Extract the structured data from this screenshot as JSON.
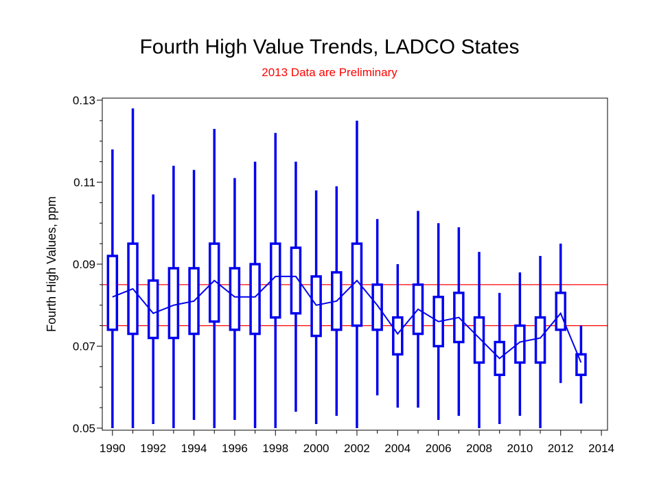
{
  "chart_data": {
    "type": "box",
    "title": "Fourth High Value Trends, LADCO States",
    "subtitle": "2013 Data are Preliminary",
    "xlabel": "",
    "ylabel": "Fourth High Values, ppm",
    "xlim": [
      1989.5,
      2014.3
    ],
    "ylim": [
      0.0495,
      0.1305
    ],
    "x_ticks": [
      "1990",
      "1992",
      "1994",
      "1996",
      "1998",
      "2000",
      "2002",
      "2004",
      "2006",
      "2008",
      "2010",
      "2012",
      "2014"
    ],
    "y_ticks": [
      "0.05",
      "0.07",
      "0.09",
      "0.11",
      "0.13"
    ],
    "grid": false,
    "legend": "none",
    "colors": {
      "box": "#0000ee",
      "reference": "#ff0000",
      "axis": "#000000"
    },
    "reference_lines": [
      0.085,
      0.075
    ],
    "boxes": [
      {
        "year": 1990,
        "min": 0.05,
        "q1": 0.074,
        "median": 0.082,
        "q3": 0.092,
        "max": 0.118
      },
      {
        "year": 1991,
        "min": 0.05,
        "q1": 0.073,
        "median": 0.084,
        "q3": 0.095,
        "max": 0.128
      },
      {
        "year": 1992,
        "min": 0.051,
        "q1": 0.072,
        "median": 0.078,
        "q3": 0.086,
        "max": 0.107
      },
      {
        "year": 1993,
        "min": 0.05,
        "q1": 0.072,
        "median": 0.08,
        "q3": 0.089,
        "max": 0.114
      },
      {
        "year": 1994,
        "min": 0.052,
        "q1": 0.073,
        "median": 0.081,
        "q3": 0.089,
        "max": 0.113
      },
      {
        "year": 1995,
        "min": 0.05,
        "q1": 0.076,
        "median": 0.086,
        "q3": 0.095,
        "max": 0.123
      },
      {
        "year": 1996,
        "min": 0.052,
        "q1": 0.074,
        "median": 0.082,
        "q3": 0.089,
        "max": 0.111
      },
      {
        "year": 1997,
        "min": 0.05,
        "q1": 0.073,
        "median": 0.082,
        "q3": 0.09,
        "max": 0.115
      },
      {
        "year": 1998,
        "min": 0.05,
        "q1": 0.077,
        "median": 0.087,
        "q3": 0.095,
        "max": 0.122
      },
      {
        "year": 1999,
        "min": 0.054,
        "q1": 0.078,
        "median": 0.087,
        "q3": 0.094,
        "max": 0.115
      },
      {
        "year": 2000,
        "min": 0.051,
        "q1": 0.0725,
        "median": 0.08,
        "q3": 0.087,
        "max": 0.108
      },
      {
        "year": 2001,
        "min": 0.053,
        "q1": 0.074,
        "median": 0.081,
        "q3": 0.088,
        "max": 0.109
      },
      {
        "year": 2002,
        "min": 0.05,
        "q1": 0.075,
        "median": 0.086,
        "q3": 0.095,
        "max": 0.125
      },
      {
        "year": 2003,
        "min": 0.058,
        "q1": 0.074,
        "median": 0.08,
        "q3": 0.085,
        "max": 0.101
      },
      {
        "year": 2004,
        "min": 0.055,
        "q1": 0.068,
        "median": 0.073,
        "q3": 0.077,
        "max": 0.09
      },
      {
        "year": 2005,
        "min": 0.055,
        "q1": 0.073,
        "median": 0.079,
        "q3": 0.085,
        "max": 0.103
      },
      {
        "year": 2006,
        "min": 0.052,
        "q1": 0.07,
        "median": 0.076,
        "q3": 0.082,
        "max": 0.1
      },
      {
        "year": 2007,
        "min": 0.053,
        "q1": 0.071,
        "median": 0.077,
        "q3": 0.083,
        "max": 0.099
      },
      {
        "year": 2008,
        "min": 0.05,
        "q1": 0.066,
        "median": 0.072,
        "q3": 0.077,
        "max": 0.093
      },
      {
        "year": 2009,
        "min": 0.051,
        "q1": 0.063,
        "median": 0.067,
        "q3": 0.071,
        "max": 0.083
      },
      {
        "year": 2010,
        "min": 0.053,
        "q1": 0.066,
        "median": 0.071,
        "q3": 0.075,
        "max": 0.088
      },
      {
        "year": 2011,
        "min": 0.05,
        "q1": 0.066,
        "median": 0.072,
        "q3": 0.077,
        "max": 0.092
      },
      {
        "year": 2012,
        "min": 0.061,
        "q1": 0.074,
        "median": 0.078,
        "q3": 0.083,
        "max": 0.095
      },
      {
        "year": 2013,
        "min": 0.056,
        "q1": 0.063,
        "median": 0.066,
        "q3": 0.068,
        "max": 0.075
      }
    ]
  }
}
